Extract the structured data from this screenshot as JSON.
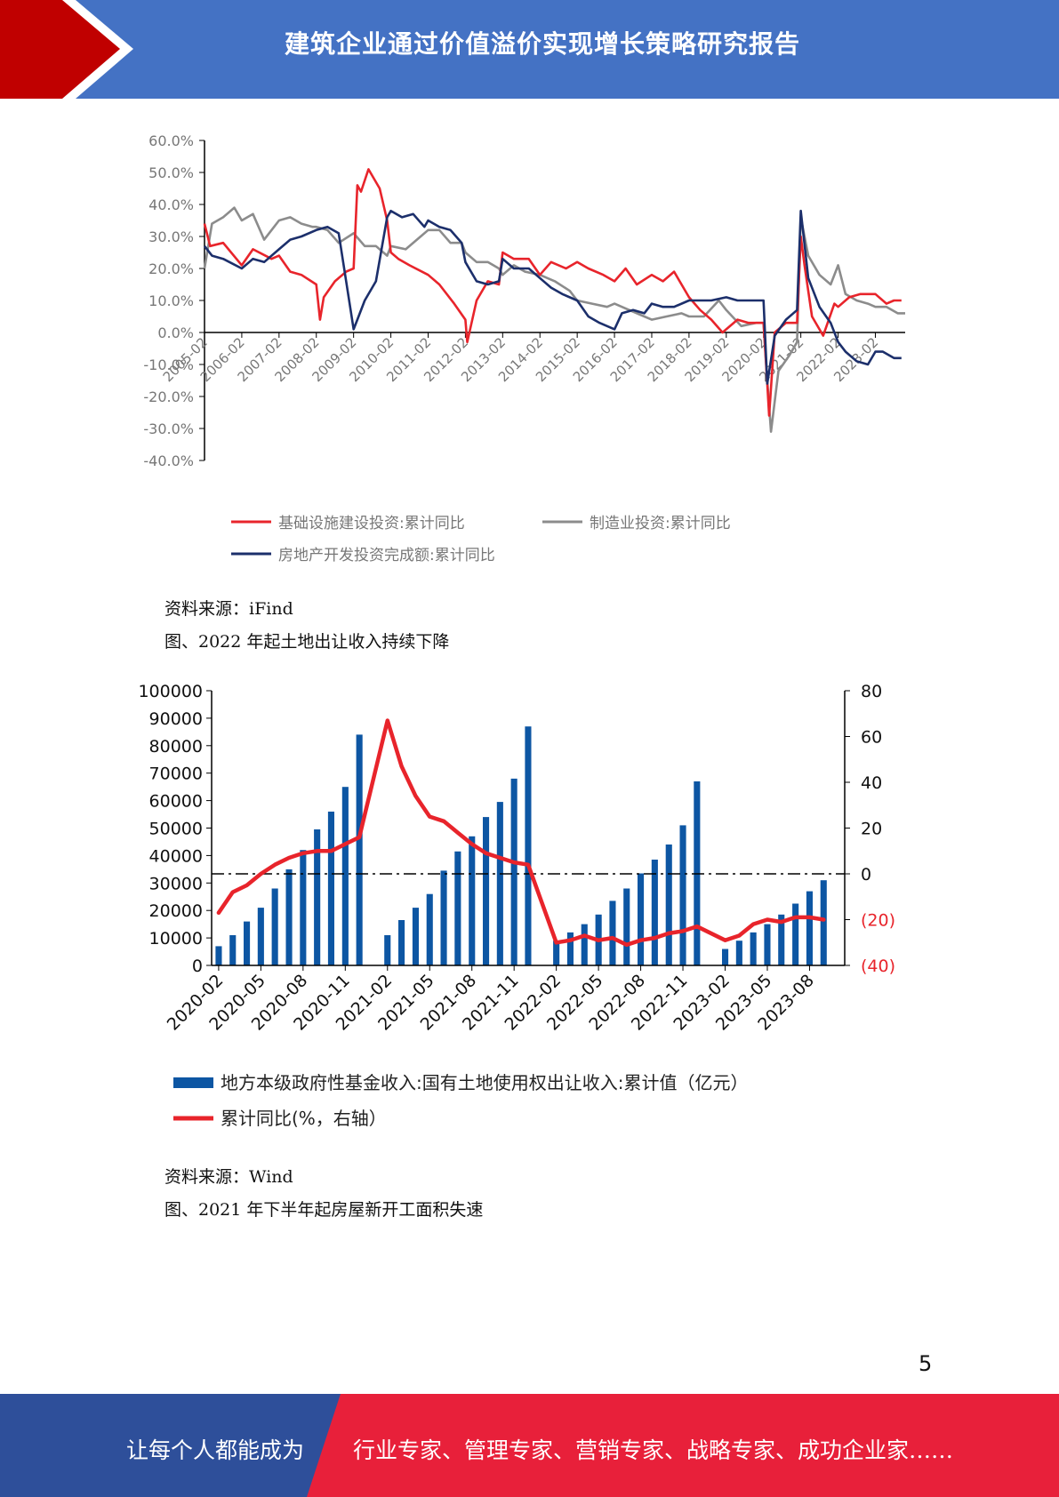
{
  "header": {
    "title": "建筑企业通过价值溢价实现增长策略研究报告"
  },
  "colors": {
    "header_blue": "#4472c4",
    "header_red": "#c00000",
    "footer_blue": "#2e4f9a",
    "footer_red": "#e8203a"
  },
  "charts": [
    {
      "chart_data": {
        "type": "line",
        "y_ticks": [
          "60.0%",
          "50.0%",
          "40.0%",
          "30.0%",
          "20.0%",
          "10.0%",
          "0.0%",
          "-10.0%",
          "-20.0%",
          "-30.0%",
          "-40.0%"
        ],
        "ylim": [
          -40,
          60
        ],
        "x_ticks": [
          "2005-02",
          "2006-02",
          "2007-02",
          "2008-02",
          "2009-02",
          "2010-02",
          "2011-02",
          "2012-02",
          "2013-02",
          "2014-02",
          "2015-02",
          "2016-02",
          "2017-02",
          "2018-02",
          "2019-02",
          "2020-02",
          "2021-02",
          "2022-02",
          "2023-02"
        ],
        "xlim": [
          2005.0,
          2023.8
        ],
        "series": [
          {
            "name": "基础设施建设投资:累计同比",
            "color": "#e8242b",
            "x": [
              2005.0,
              2005.15,
              2005.5,
              2006.0,
              2006.3,
              2006.8,
              2007.0,
              2007.3,
              2007.6,
              2008.0,
              2008.1,
              2008.2,
              2008.5,
              2008.8,
              2009.0,
              2009.1,
              2009.2,
              2009.4,
              2009.7,
              2009.9,
              2010.0,
              2010.2,
              2010.5,
              2011.0,
              2011.3,
              2011.7,
              2012.0,
              2012.05,
              2012.3,
              2012.6,
              2012.9,
              2013.0,
              2013.3,
              2013.7,
              2014.0,
              2014.3,
              2014.7,
              2015.0,
              2015.3,
              2015.7,
              2016.0,
              2016.3,
              2016.6,
              2017.0,
              2017.3,
              2017.6,
              2018.0,
              2018.3,
              2018.6,
              2018.9,
              2019.0,
              2019.3,
              2019.6,
              2020.0,
              2020.1,
              2020.15,
              2020.3,
              2020.6,
              2020.9,
              2021.0,
              2021.1,
              2021.3,
              2021.6,
              2021.9,
              2022.0,
              2022.3,
              2022.6,
              2023.0,
              2023.3,
              2023.5,
              2023.7
            ],
            "y": [
              34,
              27,
              28,
              21,
              26,
              23,
              24,
              19,
              18,
              15,
              4,
              11,
              16,
              19,
              20,
              46,
              44,
              51,
              45,
              35,
              25,
              23,
              21,
              18,
              15,
              9,
              4,
              -3,
              10,
              16,
              15,
              25,
              23,
              23,
              18,
              22,
              20,
              22,
              20,
              18,
              16,
              20,
              15,
              18,
              16,
              19,
              11,
              7,
              4,
              0,
              1,
              4,
              3,
              3,
              -16,
              -26,
              0,
              3,
              3,
              30,
              21,
              5,
              -1,
              9,
              8,
              11,
              12,
              12,
              9,
              10,
              10
            ]
          },
          {
            "name": "制造业投资:累计同比",
            "color": "#8c8c8c",
            "x": [
              2005.0,
              2005.2,
              2005.5,
              2005.8,
              2006.0,
              2006.3,
              2006.6,
              2007.0,
              2007.3,
              2007.6,
              2007.9,
              2008.0,
              2008.3,
              2008.6,
              2009.0,
              2009.3,
              2009.6,
              2009.9,
              2010.0,
              2010.4,
              2010.8,
              2011.0,
              2011.3,
              2011.6,
              2011.9,
              2012.0,
              2012.3,
              2012.6,
              2012.9,
              2013.0,
              2013.3,
              2013.6,
              2014.0,
              2014.4,
              2014.8,
              2015.0,
              2015.4,
              2015.8,
              2016.0,
              2016.4,
              2016.8,
              2017.0,
              2017.4,
              2017.8,
              2018.0,
              2018.4,
              2018.8,
              2019.0,
              2019.4,
              2019.8,
              2020.0,
              2020.1,
              2020.2,
              2020.4,
              2020.7,
              2020.9,
              2021.0,
              2021.2,
              2021.5,
              2021.8,
              2022.0,
              2022.2,
              2022.5,
              2022.8,
              2023.0,
              2023.3,
              2023.6,
              2023.8
            ],
            "y": [
              20,
              34,
              36,
              39,
              35,
              37,
              29,
              35,
              36,
              34,
              33,
              33,
              32,
              28,
              31,
              27,
              27,
              24,
              27,
              26,
              30,
              32,
              32,
              28,
              28,
              25,
              22,
              22,
              20,
              18,
              21,
              19,
              18,
              16,
              13,
              10,
              9,
              8,
              9,
              7,
              5,
              4,
              5,
              6,
              5,
              5,
              10,
              7,
              2,
              3,
              3,
              -15,
              -31,
              -12,
              -7,
              -3,
              36,
              24,
              18,
              15,
              21,
              12,
              10,
              9,
              8,
              8,
              6,
              6
            ]
          },
          {
            "name": "房地产开发投资完成额:累计同比",
            "color": "#1c2f6b",
            "x": [
              2005.0,
              2005.2,
              2005.5,
              2006.0,
              2006.3,
              2006.6,
              2007.0,
              2007.3,
              2007.6,
              2008.0,
              2008.3,
              2008.6,
              2009.0,
              2009.1,
              2009.3,
              2009.6,
              2009.9,
              2010.0,
              2010.3,
              2010.6,
              2010.9,
              2011.0,
              2011.3,
              2011.6,
              2011.9,
              2012.0,
              2012.3,
              2012.6,
              2012.9,
              2013.0,
              2013.3,
              2013.7,
              2014.0,
              2014.3,
              2014.6,
              2015.0,
              2015.3,
              2015.6,
              2016.0,
              2016.2,
              2016.5,
              2016.8,
              2017.0,
              2017.3,
              2017.6,
              2018.0,
              2018.3,
              2018.6,
              2019.0,
              2019.3,
              2019.6,
              2020.0,
              2020.1,
              2020.3,
              2020.6,
              2020.9,
              2021.0,
              2021.2,
              2021.5,
              2021.8,
              2022.0,
              2022.2,
              2022.5,
              2022.8,
              2023.0,
              2023.2,
              2023.5,
              2023.7
            ],
            "y": [
              27,
              24,
              23,
              20,
              23,
              22,
              26,
              29,
              30,
              32,
              33,
              31,
              1,
              4,
              10,
              16,
              36,
              38,
              36,
              37,
              33,
              35,
              33,
              32,
              28,
              22,
              16,
              15,
              16,
              23,
              20,
              20,
              17,
              14,
              12,
              10,
              5,
              3,
              1,
              6,
              7,
              6,
              9,
              8,
              8,
              10,
              10,
              10,
              11,
              10,
              10,
              10,
              -16,
              -1,
              4,
              7,
              38,
              17,
              8,
              3,
              -3,
              -6,
              -9,
              -10,
              -6,
              -6,
              -8,
              -8
            ]
          }
        ]
      }
    },
    {
      "chart_data": {
        "type": "bar",
        "y_ticks_left": [
          "100000",
          "90000",
          "80000",
          "70000",
          "60000",
          "50000",
          "40000",
          "30000",
          "20000",
          "10000",
          "0"
        ],
        "ylim_left": [
          0,
          100000
        ],
        "y_ticks_right": [
          "80",
          "60",
          "40",
          "20",
          "0",
          "(20)",
          "(40)"
        ],
        "ylim_right": [
          -40,
          80
        ],
        "x_ticks": [
          "2020-02",
          "2020-05",
          "2020-08",
          "2020-11",
          "2021-02",
          "2021-05",
          "2021-08",
          "2021-11",
          "2022-02",
          "2022-05",
          "2022-08",
          "2022-11",
          "2023-02",
          "2023-05",
          "2023-08"
        ],
        "categories": [
          "2020-02",
          "2020-03",
          "2020-04",
          "2020-05",
          "2020-06",
          "2020-07",
          "2020-08",
          "2020-09",
          "2020-10",
          "2020-11",
          "2020-12",
          "2021-01",
          "2021-02",
          "2021-03",
          "2021-04",
          "2021-05",
          "2021-06",
          "2021-07",
          "2021-08",
          "2021-09",
          "2021-10",
          "2021-11",
          "2021-12",
          "2022-01",
          "2022-02",
          "2022-03",
          "2022-04",
          "2022-05",
          "2022-06",
          "2022-07",
          "2022-08",
          "2022-09",
          "2022-10",
          "2022-11",
          "2022-12",
          "2023-01",
          "2023-02",
          "2023-03",
          "2023-04",
          "2023-05",
          "2023-06",
          "2023-07",
          "2023-08",
          "2023-09",
          "2023-10"
        ],
        "series": [
          {
            "name": "地方本级政府性基金收入:国有土地使用权出让收入:累计值（亿元）",
            "color": "#0d56a3",
            "values": [
              7000,
              11000,
              16000,
              21000,
              28000,
              35000,
              42000,
              49500,
              56000,
              65000,
              84000,
              null,
              11000,
              16500,
              21000,
              26000,
              34500,
              41500,
              47000,
              54000,
              59500,
              68000,
              87000,
              null,
              9000,
              12000,
              15000,
              18500,
              23500,
              28000,
              33500,
              38500,
              44000,
              51000,
              67000,
              null,
              6000,
              9000,
              12000,
              15000,
              18500,
              22500,
              27000,
              31000,
              null
            ]
          },
          {
            "name": "累计同比(%，右轴）",
            "color": "#e8242b",
            "values": [
              -17,
              -8,
              -5,
              0,
              4,
              7,
              9,
              10,
              10,
              13,
              16,
              null,
              67,
              47,
              34,
              25,
              23,
              18,
              13,
              9,
              7,
              5,
              4,
              null,
              -30,
              -29,
              -27,
              -29,
              -28,
              -31,
              -29,
              -28,
              -26,
              -25,
              -23,
              null,
              -29,
              -27,
              -22,
              -20,
              -21,
              -19,
              -19,
              -20,
              null
            ]
          }
        ]
      }
    }
  ],
  "captions": {
    "source1": "资料来源：iFind",
    "figure2_title": "图、2022 年起土地出让收入持续下降",
    "source2": "资料来源：Wind",
    "figure3_title": "图、2021 年下半年起房屋新开工面积失速"
  },
  "page_number": "5",
  "footer": {
    "left_text": "让每个人都能成为",
    "right_text": "行业专家、管理专家、营销专家、战略专家、成功企业家……"
  }
}
